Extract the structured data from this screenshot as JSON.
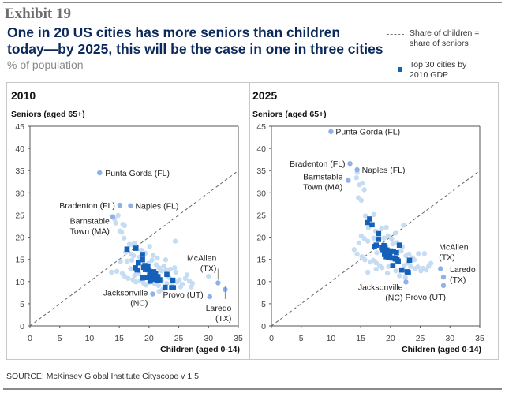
{
  "header": {
    "exhibit": "Exhibit 19",
    "title_line1": "One in 20 US cities has more seniors than children",
    "title_line2": "today—by 2025, this will be the case in one in three cities",
    "subtitle": "% of population"
  },
  "legend": {
    "line1a": "Share of children =",
    "line1b": "share of seniors",
    "line2a": "Top 30 cities by",
    "line2b": "2010 GDP"
  },
  "source": "SOURCE: McKinsey Global Institute Cityscope v 1.5",
  "colors": {
    "light_dot": "#c6dcf2",
    "mid_dot": "#8fb0e8",
    "top30": "#1560b8",
    "title": "#0b2a5b"
  },
  "chart_data": [
    {
      "type": "scatter",
      "title": "2010",
      "xlabel": "Children (aged 0-14)",
      "ylabel": "Seniors (aged 65+)",
      "xlim": [
        0,
        35
      ],
      "ylim": [
        0,
        45
      ],
      "xticks": [
        "0",
        "5",
        "10",
        "15",
        "20",
        "25",
        "30",
        "35"
      ],
      "yticks": [
        "0",
        "5",
        "10",
        "15",
        "20",
        "25",
        "30",
        "35",
        "40",
        "45"
      ],
      "reference_line": "y = x",
      "labeled_cities": [
        {
          "name": "Punta Gorda (FL)",
          "x": 11.7,
          "y": 34.5
        },
        {
          "name": "Bradenton (FL)",
          "x": 15.1,
          "y": 27.2
        },
        {
          "name": "Naples (FL)",
          "x": 16.9,
          "y": 27.1
        },
        {
          "name": "Barnstable Town (MA)",
          "x": 13.9,
          "y": 24.6
        },
        {
          "name": "McAllen (TX)",
          "x": 31.6,
          "y": 9.7
        },
        {
          "name": "Laredo (TX)",
          "x": 32.8,
          "y": 8.2
        },
        {
          "name": "Provo (UT)",
          "x": 30.2,
          "y": 6.6
        },
        {
          "name": "Jacksonville (NC)",
          "x": 20.6,
          "y": 7.2
        }
      ],
      "top30": [
        [
          16.3,
          17.3
        ],
        [
          17.8,
          17.5
        ],
        [
          18.9,
          16.1
        ],
        [
          18.2,
          14.2
        ],
        [
          18.9,
          14.9
        ],
        [
          17.7,
          13.1
        ],
        [
          18.0,
          12.6
        ],
        [
          19.1,
          13.2
        ],
        [
          19.4,
          12.7
        ],
        [
          19.8,
          13.4
        ],
        [
          18.9,
          10.8
        ],
        [
          20.3,
          11.9
        ],
        [
          20.6,
          11.2
        ],
        [
          20.9,
          10.6
        ],
        [
          20.5,
          10.5
        ],
        [
          21.1,
          11.8
        ],
        [
          21.4,
          10.3
        ],
        [
          23.0,
          11.6
        ],
        [
          22.7,
          8.7
        ],
        [
          24.0,
          10.3
        ],
        [
          23.8,
          8.6
        ],
        [
          24.1,
          8.6
        ],
        [
          20.1,
          11.3
        ],
        [
          19.6,
          10.9
        ],
        [
          21.5,
          11.1
        ],
        [
          20.8,
          12.2
        ],
        [
          20.0,
          12.6
        ],
        [
          19.3,
          13.6
        ],
        [
          20.2,
          10.1
        ],
        [
          21.8,
          10.4
        ]
      ],
      "others": [
        [
          14.2,
          24.1
        ],
        [
          14.8,
          24.9
        ],
        [
          14.4,
          23.2
        ],
        [
          15.6,
          22.9
        ],
        [
          15.9,
          22.6
        ],
        [
          15.1,
          21.4
        ],
        [
          15.4,
          21.1
        ],
        [
          15.8,
          19.8
        ],
        [
          16.7,
          18.4
        ],
        [
          17.2,
          18.3
        ],
        [
          17.6,
          18.6
        ],
        [
          20.1,
          17.9
        ],
        [
          24.4,
          19.1
        ],
        [
          16.1,
          16.6
        ],
        [
          17.0,
          16.2
        ],
        [
          17.4,
          15.8
        ],
        [
          17.1,
          14.8
        ],
        [
          16.3,
          14.6
        ],
        [
          15.2,
          14.5
        ],
        [
          14.6,
          12.3
        ],
        [
          13.7,
          12.1
        ],
        [
          15.5,
          11.8
        ],
        [
          15.9,
          11.2
        ],
        [
          16.5,
          10.7
        ],
        [
          17.3,
          10.4
        ],
        [
          17.8,
          9.9
        ],
        [
          17.6,
          11.4
        ],
        [
          18.3,
          11.8
        ],
        [
          19.1,
          9.6
        ],
        [
          19.5,
          9.2
        ],
        [
          18.5,
          10.2
        ],
        [
          19.9,
          14.1
        ],
        [
          20.5,
          14.8
        ],
        [
          21.2,
          13.8
        ],
        [
          21.7,
          13.1
        ],
        [
          22.1,
          12.4
        ],
        [
          22.5,
          13.5
        ],
        [
          22.9,
          12.7
        ],
        [
          23.4,
          10.9
        ],
        [
          22.1,
          10.1
        ],
        [
          21.6,
          9.1
        ],
        [
          22.3,
          8.2
        ],
        [
          21.7,
          7.8
        ],
        [
          23.0,
          9.6
        ],
        [
          23.9,
          9.3
        ],
        [
          24.7,
          9.9
        ],
        [
          25.1,
          10.4
        ],
        [
          25.6,
          9.4
        ],
        [
          26.1,
          10.7
        ],
        [
          26.4,
          11.5
        ],
        [
          26.8,
          10.1
        ],
        [
          27.3,
          9.6
        ],
        [
          27.1,
          8.8
        ],
        [
          25.3,
          8.8
        ],
        [
          24.5,
          12.1
        ],
        [
          22.8,
          14.9
        ],
        [
          21.4,
          15.3
        ],
        [
          20.7,
          15.9
        ],
        [
          19.4,
          16.4
        ],
        [
          18.7,
          17.1
        ],
        [
          30.0,
          11.2
        ],
        [
          21.0,
          9.4
        ],
        [
          20.0,
          9.8
        ],
        [
          23.6,
          12.8
        ],
        [
          24.3,
          13.1
        ],
        [
          18.4,
          15.5
        ],
        [
          19.0,
          15.6
        ],
        [
          16.9,
          12.9
        ]
      ]
    },
    {
      "type": "scatter",
      "title": "2025",
      "xlabel": "Children (aged 0-14)",
      "ylabel": "Seniors (aged 65+)",
      "xlim": [
        0,
        35
      ],
      "ylim": [
        0,
        45
      ],
      "xticks": [
        "0",
        "5",
        "10",
        "15",
        "20",
        "25",
        "30",
        "35"
      ],
      "yticks": [
        "0",
        "5",
        "10",
        "15",
        "20",
        "25",
        "30",
        "35",
        "40",
        "45"
      ],
      "reference_line": "y = x",
      "labeled_cities": [
        {
          "name": "Punta Gorda (FL)",
          "x": 10.0,
          "y": 43.8
        },
        {
          "name": "Bradenton (FL)",
          "x": 13.2,
          "y": 36.6
        },
        {
          "name": "Naples (FL)",
          "x": 14.4,
          "y": 35.2
        },
        {
          "name": "Barnstable Town (MA)",
          "x": 12.9,
          "y": 32.8
        },
        {
          "name": "McAllen (TX)",
          "x": 28.4,
          "y": 12.9
        },
        {
          "name": "Laredo (TX)",
          "x": 28.9,
          "y": 11.0
        },
        {
          "name": "Provo (UT)",
          "x": 28.9,
          "y": 9.1
        },
        {
          "name": "Jacksonville (NC)",
          "x": 22.6,
          "y": 9.9
        }
      ],
      "top30": [
        [
          16.5,
          24.1
        ],
        [
          16.1,
          23.3
        ],
        [
          16.9,
          22.8
        ],
        [
          18.0,
          20.8
        ],
        [
          18.0,
          19.5
        ],
        [
          17.3,
          17.9
        ],
        [
          17.6,
          18.2
        ],
        [
          18.5,
          17.6
        ],
        [
          18.9,
          18.1
        ],
        [
          19.1,
          17.8
        ],
        [
          19.0,
          16.1
        ],
        [
          19.3,
          15.6
        ],
        [
          19.6,
          16.2
        ],
        [
          19.9,
          15.9
        ],
        [
          20.0,
          16.9
        ],
        [
          20.3,
          15.3
        ],
        [
          20.8,
          15.1
        ],
        [
          21.1,
          14.9
        ],
        [
          21.3,
          14.6
        ],
        [
          21.0,
          16.5
        ],
        [
          21.5,
          18.2
        ],
        [
          23.2,
          14.8
        ],
        [
          20.4,
          13.6
        ],
        [
          21.9,
          12.6
        ],
        [
          22.8,
          12.2
        ],
        [
          23.0,
          12.0
        ],
        [
          19.4,
          17.1
        ],
        [
          20.5,
          16.8
        ],
        [
          19.7,
          15.5
        ],
        [
          18.7,
          17.2
        ]
      ],
      "others": [
        [
          14.3,
          33.4
        ],
        [
          14.4,
          34.6
        ],
        [
          14.8,
          31.8
        ],
        [
          15.3,
          32.2
        ],
        [
          15.6,
          30.7
        ],
        [
          14.6,
          28.9
        ],
        [
          15.1,
          28.3
        ],
        [
          15.8,
          24.8
        ],
        [
          17.2,
          25.1
        ],
        [
          16.3,
          22.1
        ],
        [
          17.5,
          21.4
        ],
        [
          18.5,
          21.9
        ],
        [
          19.3,
          22.2
        ],
        [
          22.2,
          22.7
        ],
        [
          15.1,
          20.3
        ],
        [
          15.6,
          19.7
        ],
        [
          16.2,
          19.1
        ],
        [
          17.2,
          19.8
        ],
        [
          19.6,
          20.3
        ],
        [
          20.2,
          19.6
        ],
        [
          20.8,
          20.9
        ],
        [
          14.7,
          18.7
        ],
        [
          13.9,
          17.2
        ],
        [
          14.4,
          16.2
        ],
        [
          15.2,
          15.6
        ],
        [
          15.7,
          14.9
        ],
        [
          16.6,
          14.4
        ],
        [
          17.1,
          14.8
        ],
        [
          17.6,
          14.2
        ],
        [
          18.2,
          13.6
        ],
        [
          18.6,
          13.1
        ],
        [
          19.7,
          13.4
        ],
        [
          20.9,
          12.4
        ],
        [
          21.5,
          11.3
        ],
        [
          19.5,
          11.9
        ],
        [
          16.2,
          12.1
        ],
        [
          17.6,
          12.8
        ],
        [
          22.3,
          13.6
        ],
        [
          22.9,
          14.2
        ],
        [
          23.4,
          13.4
        ],
        [
          24.1,
          12.9
        ],
        [
          24.6,
          13.3
        ],
        [
          25.1,
          12.4
        ],
        [
          25.5,
          13.0
        ],
        [
          26.0,
          12.6
        ],
        [
          26.4,
          13.4
        ],
        [
          24.7,
          16.3
        ],
        [
          23.1,
          16.2
        ],
        [
          22.6,
          15.8
        ],
        [
          21.8,
          16.9
        ],
        [
          22.0,
          17.8
        ],
        [
          21.1,
          18.8
        ],
        [
          20.4,
          18.5
        ],
        [
          24.0,
          14.9
        ],
        [
          26.8,
          14.1
        ],
        [
          25.7,
          16.3
        ],
        [
          23.7,
          15.4
        ],
        [
          22.5,
          10.9
        ],
        [
          18.9,
          19.8
        ],
        [
          17.7,
          16.5
        ]
      ]
    }
  ]
}
